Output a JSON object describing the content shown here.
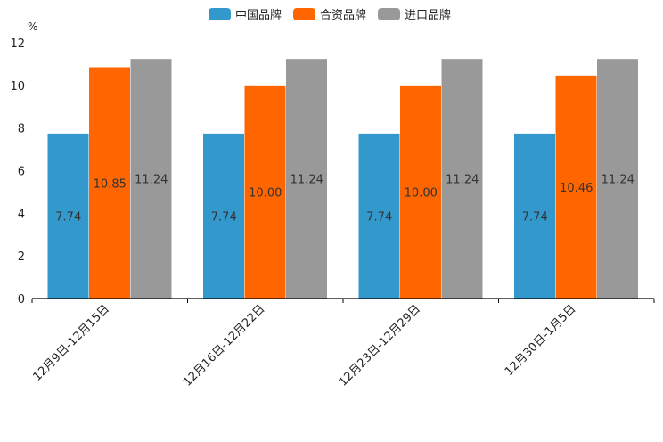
{
  "chart_data": {
    "type": "bar",
    "title": "",
    "ylabel": "%",
    "xlabel": "",
    "ylim": [
      0,
      12
    ],
    "yticks": [
      0,
      2,
      4,
      6,
      8,
      10,
      12
    ],
    "grid": false,
    "legend_position": "top-center",
    "categories": [
      "12月9日-12月15日",
      "12月16日-12月22日",
      "12月23日-12月29日",
      "12月30日-1月5日"
    ],
    "series": [
      {
        "name": "中国品牌",
        "color": "#3399cc",
        "values": [
          7.74,
          7.74,
          7.74,
          7.74
        ],
        "labels": [
          "7.74",
          "7.74",
          "7.74",
          "7.74"
        ]
      },
      {
        "name": "合资品牌",
        "color": "#ff6600",
        "values": [
          10.85,
          10.0,
          10.0,
          10.46
        ],
        "labels": [
          "10.85",
          "10.00",
          "10.00",
          "10.46"
        ]
      },
      {
        "name": "进口品牌",
        "color": "#999999",
        "values": [
          11.24,
          11.24,
          11.24,
          11.24
        ],
        "labels": [
          "11.24",
          "11.24",
          "11.24",
          "11.24"
        ]
      }
    ]
  }
}
